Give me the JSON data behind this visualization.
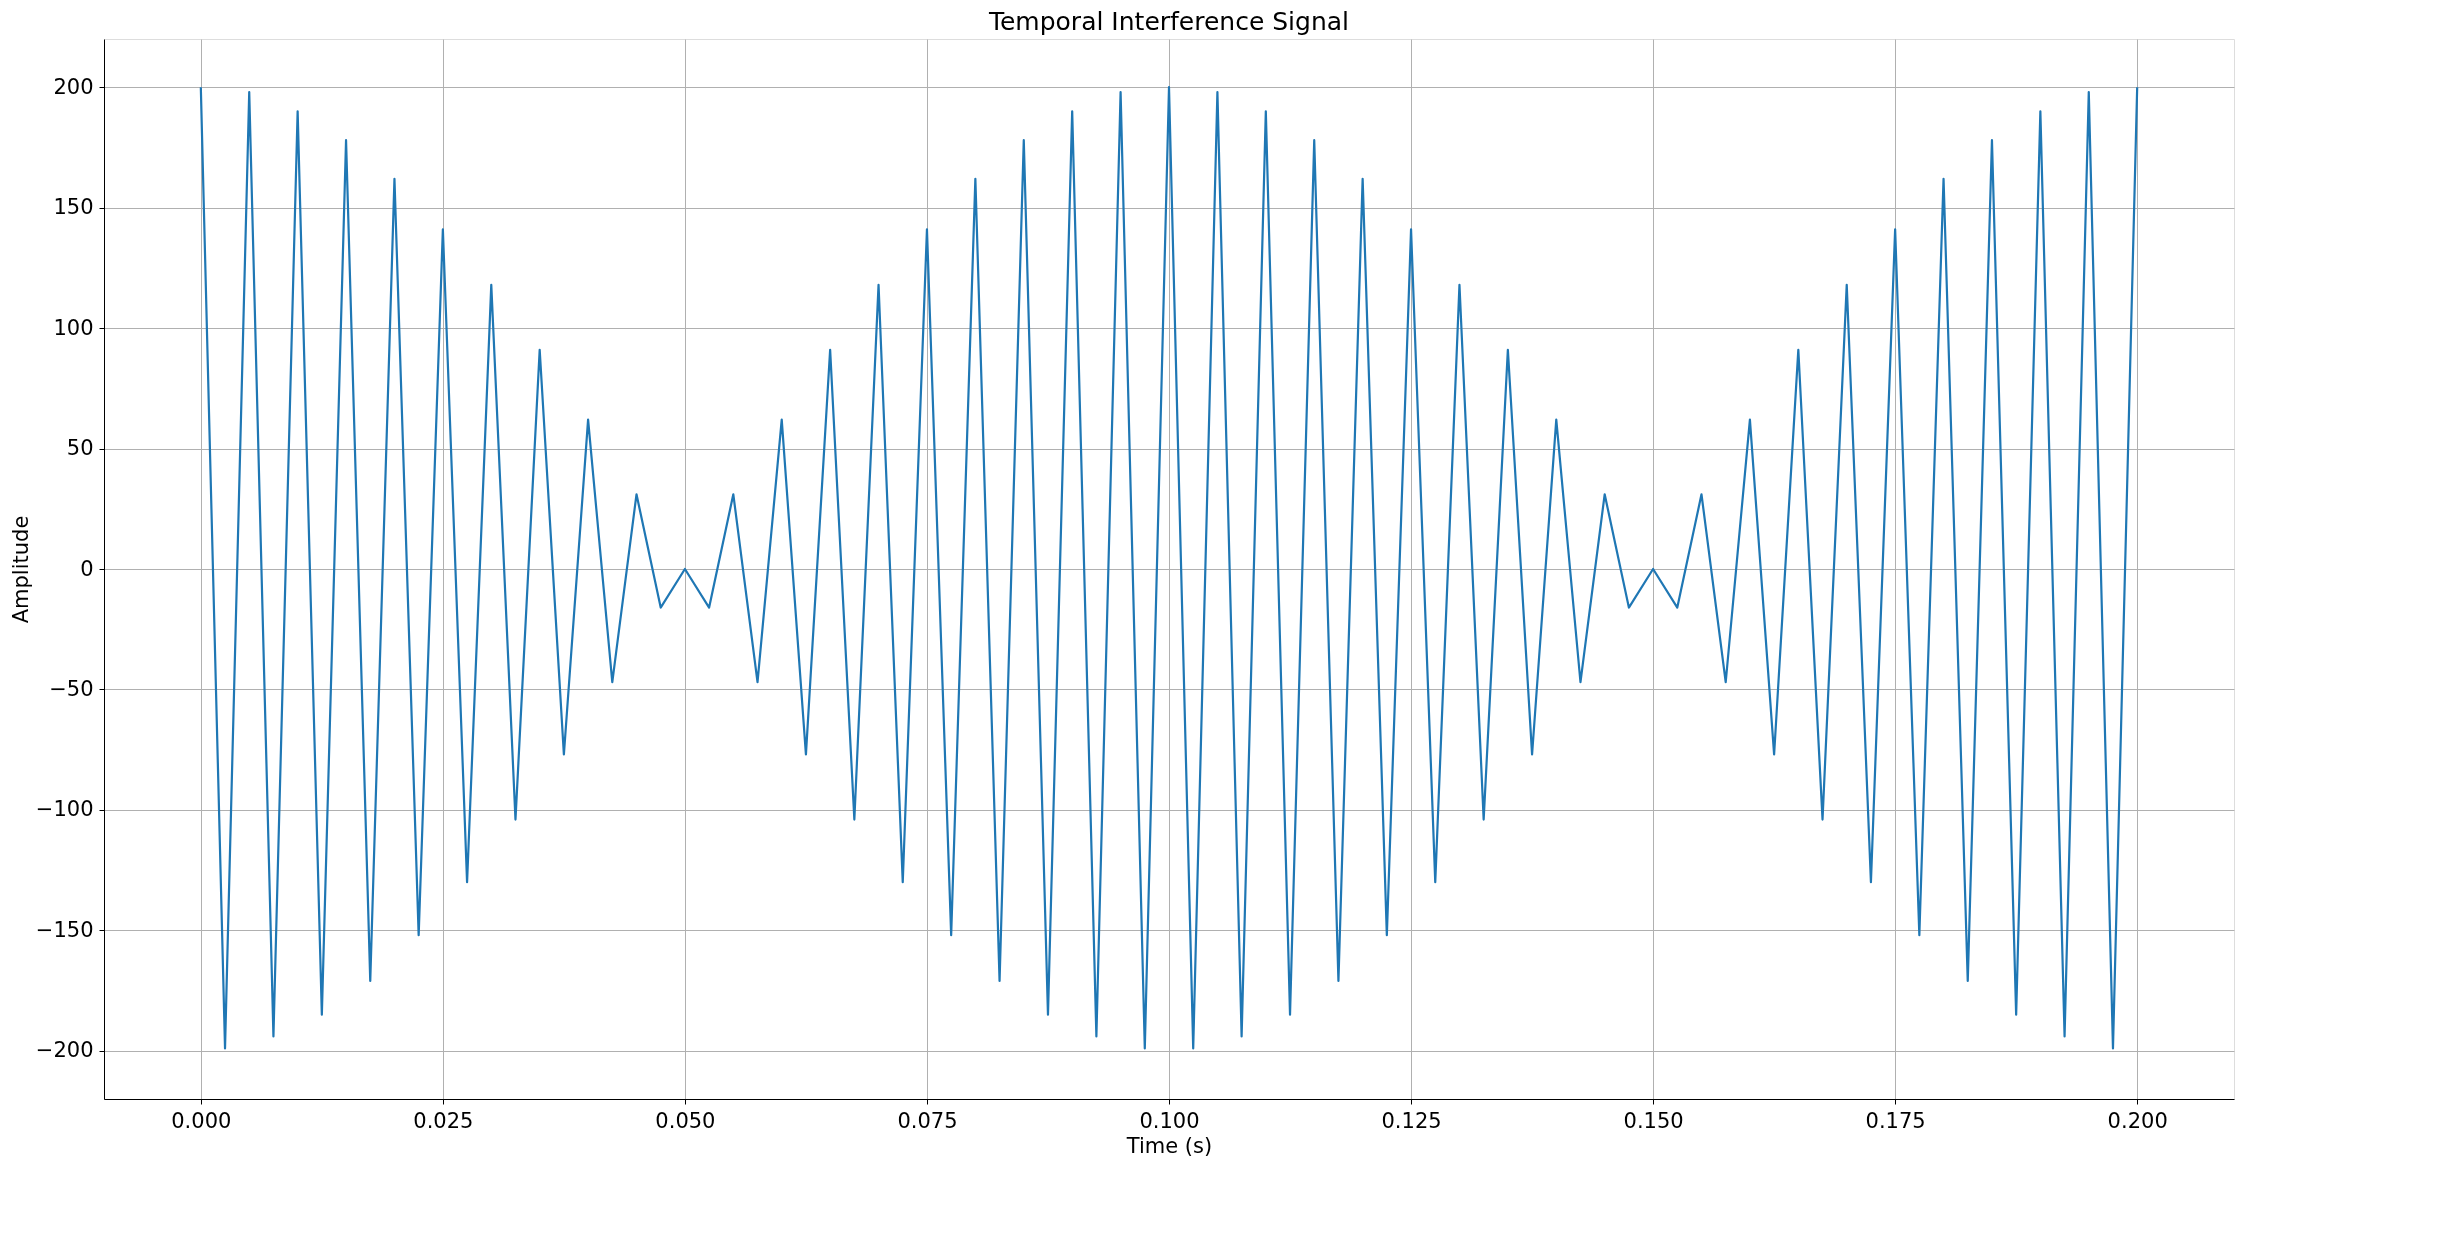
{
  "chart_data": {
    "type": "line",
    "title": "Temporal Interference Signal",
    "xlabel": "Time (s)",
    "ylabel": "Amplitude",
    "x": [
      0,
      0.0025,
      0.005,
      0.0075,
      0.01,
      0.0125,
      0.015,
      0.0175,
      0.02,
      0.0225,
      0.025,
      0.0275,
      0.03,
      0.0325,
      0.035,
      0.0375,
      0.04,
      0.0425,
      0.045,
      0.0475,
      0.05,
      0.0525,
      0.055,
      0.0575,
      0.06,
      0.0625,
      0.065,
      0.0675,
      0.07,
      0.0725,
      0.075,
      0.0775,
      0.08,
      0.0825,
      0.085,
      0.0875,
      0.09,
      0.0925,
      0.095,
      0.0975,
      0.1,
      0.1025,
      0.105,
      0.1075,
      0.11,
      0.1125,
      0.115,
      0.1175,
      0.12,
      0.1225,
      0.125,
      0.1275,
      0.13,
      0.1325,
      0.135,
      0.1375,
      0.14,
      0.1425,
      0.145,
      0.1475,
      0.15,
      0.1525,
      0.155,
      0.1575,
      0.16,
      0.1625,
      0.165,
      0.1675,
      0.17,
      0.1725,
      0.175,
      0.1775,
      0.18,
      0.1825,
      0.185,
      0.1875,
      0.19,
      0.1925,
      0.195,
      0.1975,
      0.2
    ],
    "series": [
      {
        "color": "#1f77b4",
        "values": [
          200,
          -199,
          198,
          -194,
          190,
          -185,
          178,
          -171,
          162,
          -152,
          141,
          -130,
          118,
          -104,
          91,
          -77,
          62,
          -47,
          31,
          -16,
          0,
          -16,
          31,
          -47,
          62,
          -77,
          91,
          -104,
          118,
          -130,
          141,
          -152,
          162,
          -171,
          178,
          -185,
          190,
          -194,
          198,
          -199,
          200,
          -199,
          198,
          -194,
          190,
          -185,
          178,
          -171,
          162,
          -152,
          141,
          -130,
          118,
          -104,
          91,
          -77,
          62,
          -47,
          31,
          -16,
          0,
          -16,
          31,
          -47,
          62,
          -77,
          91,
          -104,
          118,
          -130,
          141,
          -152,
          162,
          -171,
          178,
          -185,
          190,
          -194,
          198,
          -199,
          200
        ]
      }
    ],
    "xlim": [
      -0.01,
      0.21
    ],
    "xticks": [
      {
        "value": 0,
        "label": "0.000"
      },
      {
        "value": 0.025,
        "label": "0.025"
      },
      {
        "value": 0.05,
        "label": "0.050"
      },
      {
        "value": 0.075,
        "label": "0.075"
      },
      {
        "value": 0.1,
        "label": "0.100"
      },
      {
        "value": 0.125,
        "label": "0.125"
      },
      {
        "value": 0.15,
        "label": "0.150"
      },
      {
        "value": 0.175,
        "label": "0.175"
      },
      {
        "value": 0.2,
        "label": "0.200"
      }
    ],
    "ylim": [
      -220,
      220
    ],
    "yticks": [
      {
        "value": -200,
        "label": "−200"
      },
      {
        "value": -150,
        "label": "−150"
      },
      {
        "value": -100,
        "label": "−100"
      },
      {
        "value": -50,
        "label": "−50"
      },
      0,
      50,
      100,
      150,
      200
    ],
    "grid": true,
    "line_style": "solid",
    "marker": "none"
  }
}
